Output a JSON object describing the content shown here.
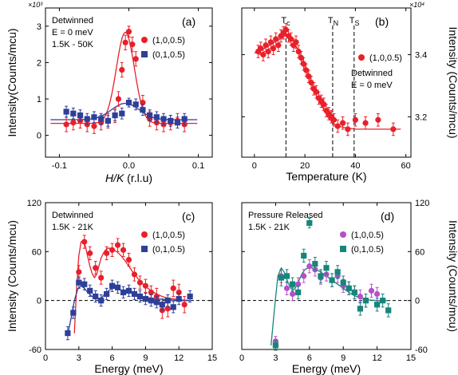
{
  "chart_data": [
    {
      "type": "scatter",
      "panel_label": "(a)",
      "annotations": [
        "Detwinned",
        "E = 0 meV",
        "1.5K - 50K"
      ],
      "xlabel_italic": "H/K",
      "xlabel_unit": " (r.l.u)",
      "ylabel": "Intensity(Counts/mcu)",
      "y_multiplier": "×10³",
      "xlim": [
        -0.12,
        0.12
      ],
      "ylim": [
        -0.6,
        3.5
      ],
      "xticks": [
        -0.1,
        0,
        0.1
      ],
      "xtick_labels": [
        "-0.1",
        "0.0",
        "0.1"
      ],
      "yticks": [
        0,
        1,
        2,
        3
      ],
      "grid": false,
      "legend_position": "top-right",
      "series": [
        {
          "name": "(1,0,0.5)",
          "marker": "circle",
          "color": "#e8202a",
          "x": [
            -0.09,
            -0.08,
            -0.07,
            -0.06,
            -0.05,
            -0.04,
            -0.03,
            -0.02,
            -0.015,
            -0.01,
            -0.005,
            0.0,
            0.005,
            0.01,
            0.02,
            0.03,
            0.04,
            0.05,
            0.06,
            0.07,
            0.08
          ],
          "y": [
            0.3,
            0.35,
            0.4,
            0.3,
            0.25,
            0.35,
            0.4,
            0.55,
            1.0,
            1.8,
            2.55,
            2.85,
            2.5,
            2.1,
            0.9,
            0.45,
            0.35,
            0.3,
            0.35,
            0.4,
            0.3
          ],
          "yerr": [
            0.2,
            0.2,
            0.2,
            0.2,
            0.2,
            0.2,
            0.2,
            0.2,
            0.2,
            0.2,
            0.2,
            0.15,
            0.2,
            0.2,
            0.2,
            0.2,
            0.2,
            0.2,
            0.2,
            0.2,
            0.2
          ],
          "fit": {
            "x0": -0.005,
            "sigma": 0.013,
            "base": 0.33,
            "amp": 2.5
          }
        },
        {
          "name": "(0,1,0.5)",
          "marker": "square",
          "color": "#2e3f99",
          "x": [
            -0.09,
            -0.08,
            -0.07,
            -0.06,
            -0.05,
            -0.04,
            -0.03,
            -0.02,
            -0.01,
            0.0,
            0.01,
            0.02,
            0.03,
            0.04,
            0.05,
            0.06,
            0.07,
            0.08
          ],
          "y": [
            0.65,
            0.6,
            0.55,
            0.45,
            0.5,
            0.45,
            0.4,
            0.55,
            0.6,
            0.9,
            0.85,
            0.7,
            0.55,
            0.5,
            0.45,
            0.4,
            0.35,
            0.45
          ],
          "yerr": [
            0.15,
            0.15,
            0.15,
            0.15,
            0.15,
            0.15,
            0.15,
            0.15,
            0.15,
            0.12,
            0.15,
            0.15,
            0.15,
            0.15,
            0.15,
            0.15,
            0.15,
            0.15
          ],
          "fit": {
            "x0": -0.005,
            "sigma": 0.02,
            "base": 0.43,
            "amp": 0.45
          }
        }
      ]
    },
    {
      "type": "scatter",
      "panel_label": "(b)",
      "annotations": [
        "Detwinned",
        "E = 0 meV"
      ],
      "xlabel": "Temperature (K)",
      "ylabel": "Intensity (Counts/mcu)",
      "y_multiplier": "×10⁴",
      "xlim": [
        -5,
        62
      ],
      "ylim": [
        3.07,
        3.55
      ],
      "xticks": [
        0,
        20,
        40,
        60
      ],
      "yticks": [
        3.2,
        3.4
      ],
      "grid": false,
      "legend_position": "top-right",
      "transitions": [
        {
          "label": "T",
          "sub": "c",
          "x": 12.5
        },
        {
          "label": "T",
          "sub": "N",
          "x": 31
        },
        {
          "label": "T",
          "sub": "S",
          "x": 39.5
        }
      ],
      "series": [
        {
          "name": "(1,0,0.5)",
          "marker": "circle",
          "color": "#e8202a",
          "x": [
            1.5,
            2.5,
            3.5,
            4.5,
            5.5,
            6.5,
            7.5,
            8.5,
            9.5,
            10.5,
            11.5,
            12.5,
            13.5,
            14.5,
            15.5,
            16.5,
            17.5,
            18.5,
            19.5,
            20.5,
            21.5,
            22.5,
            23.5,
            24.5,
            25.5,
            26.5,
            27.5,
            28.5,
            29.5,
            30.5,
            31.5,
            33,
            35,
            37,
            40,
            44,
            49,
            55
          ],
          "y": [
            3.41,
            3.42,
            3.4,
            3.43,
            3.41,
            3.44,
            3.42,
            3.45,
            3.43,
            3.46,
            3.47,
            3.48,
            3.46,
            3.45,
            3.43,
            3.44,
            3.41,
            3.39,
            3.37,
            3.35,
            3.33,
            3.31,
            3.29,
            3.28,
            3.26,
            3.25,
            3.24,
            3.22,
            3.21,
            3.2,
            3.19,
            3.17,
            3.18,
            3.16,
            3.19,
            3.18,
            3.19,
            3.16
          ],
          "yerr": [
            0.02,
            0.02,
            0.02,
            0.02,
            0.02,
            0.02,
            0.02,
            0.02,
            0.02,
            0.02,
            0.02,
            0.02,
            0.02,
            0.02,
            0.02,
            0.02,
            0.02,
            0.02,
            0.02,
            0.02,
            0.02,
            0.02,
            0.02,
            0.02,
            0.02,
            0.02,
            0.02,
            0.02,
            0.02,
            0.02,
            0.02,
            0.02,
            0.02,
            0.02,
            0.02,
            0.02,
            0.02,
            0.02
          ],
          "fit_x": [
            0,
            4,
            8,
            12,
            13,
            15,
            17,
            19,
            21,
            23,
            25,
            27,
            29,
            31,
            33,
            36,
            40,
            50,
            58
          ],
          "fit_y": [
            3.405,
            3.42,
            3.44,
            3.46,
            3.465,
            3.45,
            3.42,
            3.38,
            3.34,
            3.3,
            3.26,
            3.23,
            3.2,
            3.18,
            3.17,
            3.165,
            3.16,
            3.16,
            3.16
          ]
        }
      ]
    },
    {
      "type": "scatter",
      "panel_label": "(c)",
      "annotations": [
        "Detwinned",
        "1.5K - 21K"
      ],
      "xlabel": "Energy (meV)",
      "ylabel": "Intensity (Counts/mcu)",
      "xlim": [
        0,
        15
      ],
      "ylim": [
        -60,
        120
      ],
      "xticks": [
        0,
        3,
        6,
        9,
        12,
        15
      ],
      "yticks": [
        -60,
        0,
        60,
        120
      ],
      "zero_line": true,
      "grid": false,
      "legend_position": "top-right",
      "series": [
        {
          "name": "(1,0,0.5)",
          "marker": "circle",
          "color": "#e8202a",
          "x": [
            3.0,
            3.5,
            4.0,
            4.5,
            5.0,
            5.5,
            6.0,
            6.5,
            7.0,
            7.5,
            8.0,
            8.5,
            9.0,
            9.5,
            10.0,
            10.5,
            11.0,
            11.5,
            12.0,
            12.5
          ],
          "y": [
            35,
            72,
            58,
            40,
            28,
            58,
            62,
            68,
            62,
            50,
            32,
            22,
            18,
            10,
            5,
            -12,
            -10,
            15,
            10,
            -5
          ],
          "yerr": [
            8,
            8,
            8,
            8,
            8,
            8,
            8,
            8,
            8,
            8,
            8,
            8,
            8,
            8,
            10,
            10,
            10,
            10,
            10,
            10
          ]
        },
        {
          "name": "(0,1,0.5)",
          "marker": "square",
          "color": "#2e3f99",
          "x": [
            2.0,
            2.5,
            3.0,
            3.5,
            4.0,
            4.5,
            5.0,
            5.5,
            6.0,
            6.5,
            7.0,
            7.5,
            8.0,
            8.5,
            9.0,
            9.5,
            10.0,
            10.5,
            11.0,
            11.5,
            12.0,
            13.0
          ],
          "y": [
            -40,
            -15,
            22,
            20,
            12,
            5,
            0,
            8,
            18,
            16,
            10,
            12,
            8,
            5,
            2,
            0,
            -2,
            -5,
            0,
            -8,
            2,
            5
          ],
          "yerr": [
            8,
            7,
            7,
            7,
            7,
            7,
            7,
            7,
            7,
            7,
            7,
            7,
            7,
            7,
            7,
            7,
            7,
            7,
            7,
            7,
            7,
            7
          ]
        }
      ],
      "fits": [
        {
          "color": "#e8202a",
          "x": [
            2.6,
            2.8,
            3.0,
            3.2,
            3.4,
            3.6,
            3.8,
            4.0,
            4.2,
            4.4,
            4.6,
            4.8,
            5.0,
            5.2,
            5.4,
            5.6,
            5.8,
            6.0,
            6.4,
            6.8,
            7.2,
            7.6,
            8.0,
            8.5,
            9.0,
            9.5,
            10.0,
            10.5,
            11.0,
            12.0,
            13.0
          ],
          "y": [
            -40,
            15,
            55,
            72,
            74,
            66,
            54,
            42,
            33,
            28,
            32,
            42,
            52,
            58,
            62,
            64,
            64,
            63,
            60,
            55,
            48,
            40,
            32,
            24,
            17,
            12,
            8,
            5,
            3,
            1,
            0
          ]
        },
        {
          "color": "#2e3f99",
          "x": [
            2.0,
            2.3,
            2.6,
            2.9,
            3.2,
            3.5,
            3.8,
            4.1,
            4.4,
            4.7,
            5.0,
            5.3,
            5.6,
            5.9,
            6.2,
            6.6,
            7.0,
            7.5,
            8.0,
            8.5,
            9.0,
            10.0,
            11.0,
            12.0,
            13.0
          ],
          "y": [
            -42,
            -22,
            0,
            14,
            18,
            15,
            10,
            6,
            3,
            2,
            3,
            7,
            11,
            14,
            15,
            14,
            12,
            10,
            8,
            6,
            4,
            2,
            1,
            0,
            0
          ]
        }
      ]
    },
    {
      "type": "scatter",
      "panel_label": "(d)",
      "annotations": [
        "Pressure Released",
        "1.5K - 21K"
      ],
      "xlabel": "Energy (meV)",
      "ylabel": "Intensity (Counts/mcu)",
      "xlim": [
        0,
        15
      ],
      "ylim": [
        -60,
        120
      ],
      "xticks": [
        0,
        3,
        6,
        9,
        12,
        15
      ],
      "yticks": [
        -60,
        0,
        60,
        120
      ],
      "zero_line": true,
      "grid": false,
      "legend_position": "top-right",
      "series": [
        {
          "name": "(1,0,0.5)",
          "marker": "circle",
          "color": "#b450c8",
          "x": [
            3.0,
            3.5,
            4.0,
            4.5,
            5.0,
            5.5,
            6.0,
            6.5,
            7.0,
            7.5,
            8.0,
            8.5,
            9.0,
            9.5,
            10.0,
            10.5,
            11.0,
            11.5,
            12.0
          ],
          "y": [
            -50,
            30,
            15,
            8,
            20,
            30,
            42,
            38,
            28,
            32,
            25,
            30,
            18,
            15,
            10,
            5,
            0,
            12,
            8
          ],
          "yerr": [
            6,
            8,
            8,
            8,
            8,
            8,
            8,
            8,
            8,
            8,
            8,
            8,
            8,
            8,
            8,
            8,
            8,
            8,
            8
          ]
        },
        {
          "name": "(0,1,0.5)",
          "marker": "square",
          "color": "#16857a",
          "x": [
            3.0,
            3.5,
            4.0,
            4.5,
            5.0,
            5.5,
            6.0,
            6.5,
            7.0,
            7.5,
            8.0,
            8.5,
            9.0,
            9.5,
            10.0,
            10.5,
            11.0,
            12.0,
            12.5,
            13.0
          ],
          "y": [
            -55,
            28,
            30,
            20,
            10,
            55,
            95,
            45,
            30,
            40,
            25,
            35,
            22,
            15,
            10,
            -10,
            0,
            -5,
            0,
            -12
          ],
          "yerr": [
            6,
            10,
            8,
            8,
            8,
            8,
            6,
            8,
            8,
            8,
            8,
            8,
            8,
            8,
            8,
            8,
            8,
            8,
            8,
            8
          ]
        }
      ],
      "fits": [
        {
          "color": "#16857a",
          "x": [
            2.6,
            2.9,
            3.2,
            3.5,
            3.8,
            4.1,
            4.4,
            4.7,
            5.0,
            5.3,
            5.6,
            5.9,
            6.2,
            6.6,
            7.0,
            7.5,
            8.0,
            8.5,
            9.0,
            9.5,
            10.0,
            10.5,
            11.0,
            12.0,
            13.0
          ],
          "y": [
            -55,
            -10,
            30,
            40,
            34,
            22,
            14,
            14,
            22,
            32,
            38,
            40,
            40,
            38,
            35,
            30,
            25,
            20,
            15,
            10,
            6,
            3,
            1,
            0,
            0
          ]
        }
      ]
    }
  ]
}
